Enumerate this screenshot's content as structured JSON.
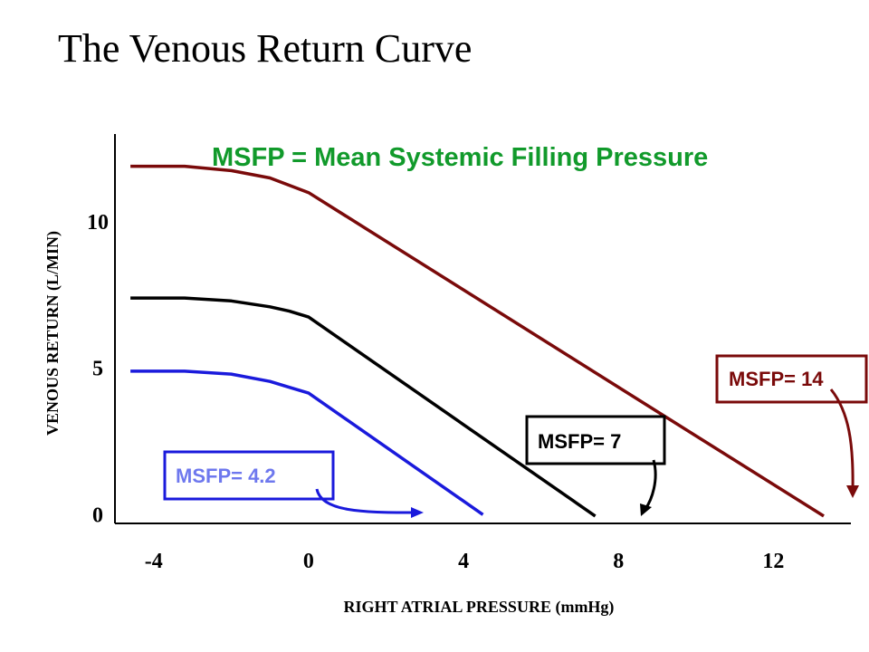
{
  "title": "The Venous Return Curve",
  "colors": {
    "msfp_14": "#7a0a0a",
    "msfp_7": "#000000",
    "msfp_4_2": "#1a1adc",
    "msfp_4_2_text": "#6e78ee",
    "subtitle": "#119a2b",
    "axis": "#000000"
  },
  "chart_data": {
    "type": "line",
    "title": "The Venous Return Curve",
    "subtitle": "MSFP = Mean Systemic Filling Pressure",
    "xlabel": "RIGHT ATRIAL PRESSURE (mmHg)",
    "ylabel": "VENOUS RETURN (L/MIN)",
    "xlim": [
      -5,
      14
    ],
    "ylim": [
      -0.3,
      13
    ],
    "xticks": [
      -4,
      0,
      4,
      8,
      12
    ],
    "yticks": [
      0,
      5,
      10
    ],
    "grid": false,
    "series": [
      {
        "name": "MSFP= 14",
        "x": [
          -4.6,
          -3.2,
          -2.0,
          -1.0,
          -0.5,
          0.0,
          13.3
        ],
        "y": [
          11.9,
          11.9,
          11.75,
          11.5,
          11.25,
          11.0,
          -0.05
        ]
      },
      {
        "name": "MSFP= 7",
        "x": [
          -4.6,
          -3.2,
          -2.0,
          -1.0,
          -0.5,
          0.0,
          7.4
        ],
        "y": [
          7.4,
          7.4,
          7.3,
          7.1,
          6.95,
          6.75,
          -0.05
        ]
      },
      {
        "name": "MSFP= 4.2",
        "x": [
          -4.6,
          -3.2,
          -2.0,
          -1.0,
          -0.5,
          0.0,
          4.5
        ],
        "y": [
          4.9,
          4.9,
          4.8,
          4.55,
          4.35,
          4.15,
          0.0
        ]
      }
    ],
    "annotations": [
      {
        "text": "MSFP= 14",
        "series": 0
      },
      {
        "text": "MSFP= 7",
        "series": 1
      },
      {
        "text": "MSFP= 4.2",
        "series": 2
      }
    ]
  }
}
